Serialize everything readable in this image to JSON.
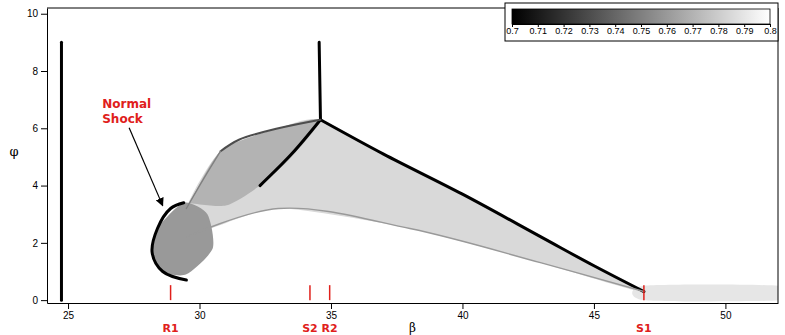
{
  "chart_data": {
    "type": "contour",
    "x_label": "β",
    "y_label": "φ",
    "xlim": [
      24.2,
      52
    ],
    "ylim": [
      -0.1,
      10.2
    ],
    "xticks": [
      25,
      30,
      35,
      40,
      45,
      50
    ],
    "yticks": [
      0,
      2,
      4,
      6,
      8,
      10
    ],
    "colorbar": {
      "range": [
        0.7,
        0.8
      ],
      "ticks": [
        0.7,
        0.71,
        0.72,
        0.73,
        0.74,
        0.75,
        0.76,
        0.77,
        0.78,
        0.79,
        0.8
      ]
    },
    "regions": [
      {
        "value": 0.785,
        "x": [
          29.5,
          30.8,
          33,
          34.6,
          37,
          40,
          43,
          46.9,
          43,
          38,
          33,
          30
        ],
        "y": [
          3.2,
          5.2,
          6.0,
          6.3,
          5.1,
          3.7,
          2.2,
          0.3,
          1.3,
          2.5,
          3.2,
          2.4
        ]
      },
      {
        "value": 0.77,
        "x": [
          29.5,
          30.8,
          33,
          34.6,
          33.5,
          32.3,
          31,
          29.4
        ],
        "y": [
          3.2,
          5.2,
          6.0,
          6.3,
          5.0,
          4.0,
          3.3,
          3.4
        ]
      },
      {
        "value": 0.76,
        "x": [
          28.2,
          28.4,
          29.4,
          30.3,
          30.5,
          29.5,
          28.6
        ],
        "y": [
          1.65,
          2.5,
          3.4,
          3.0,
          1.8,
          0.9,
          1.0
        ]
      },
      {
        "value": 0.79,
        "x": [
          46.9,
          52,
          52,
          46.9
        ],
        "y": [
          0.5,
          0.5,
          0,
          0
        ]
      }
    ],
    "shock_lines": [
      {
        "value": 0.7,
        "x": [
          24.75,
          24.75
        ],
        "y": [
          0,
          9.0
        ]
      },
      {
        "value": 0.7,
        "x": [
          34.55,
          34.6
        ],
        "y": [
          9.0,
          6.3
        ]
      },
      {
        "value": 0.7,
        "x": [
          34.6,
          37,
          40,
          43,
          45,
          46.9
        ],
        "y": [
          6.3,
          5.1,
          3.7,
          2.2,
          1.2,
          0.3
        ]
      },
      {
        "value": 0.7,
        "x": [
          34.6,
          33.5,
          32.3
        ],
        "y": [
          6.3,
          5.1,
          4.0
        ]
      },
      {
        "value": 0.73,
        "x": [
          34.6,
          33,
          31.5,
          30.8
        ],
        "y": [
          6.3,
          6.0,
          5.6,
          5.2
        ]
      },
      {
        "value": 0.75,
        "x": [
          30.8,
          30.2,
          29.5
        ],
        "y": [
          5.2,
          4.3,
          3.2
        ]
      },
      {
        "value": 0.7,
        "x": [
          29.4,
          28.9,
          28.4,
          28.2,
          28.6,
          29.5
        ],
        "y": [
          3.4,
          3.2,
          2.5,
          1.65,
          1.0,
          0.7
        ]
      },
      {
        "value": 0.76,
        "x": [
          29.5,
          33,
          38,
          43,
          46.9
        ],
        "y": [
          2.2,
          3.2,
          2.5,
          1.3,
          0.3
        ]
      }
    ],
    "annotations": [
      {
        "text": "Normal Shock",
        "x": 26.3,
        "y": 6.7,
        "arrow_to": [
          28.6,
          3.3
        ]
      }
    ],
    "markers": [
      {
        "label": "R1",
        "x": 28.9
      },
      {
        "label": "S2",
        "x": 34.2
      },
      {
        "label": "R2",
        "x": 34.95
      },
      {
        "label": "S1",
        "x": 46.9
      }
    ]
  }
}
